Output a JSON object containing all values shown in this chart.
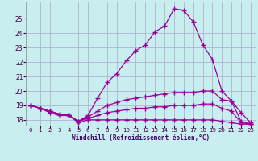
{
  "xlabel": "Windchill (Refroidissement éolien,°C)",
  "background_color": "#c8eef0",
  "grid_color": "#aaaacc",
  "line_color": "#990099",
  "marker": "+",
  "markersize": 4,
  "linewidth": 0.9,
  "xlim": [
    -0.5,
    23.5
  ],
  "ylim": [
    17.6,
    26.2
  ],
  "yticks": [
    18,
    19,
    20,
    21,
    22,
    23,
    24,
    25
  ],
  "xticks": [
    0,
    1,
    2,
    3,
    4,
    5,
    6,
    7,
    8,
    9,
    10,
    11,
    12,
    13,
    14,
    15,
    16,
    17,
    18,
    19,
    20,
    21,
    22,
    23
  ],
  "series": [
    {
      "x": [
        0,
        1,
        2,
        3,
        4,
        5,
        6,
        7,
        8,
        9,
        10,
        11,
        12,
        13,
        14,
        15,
        16,
        17,
        18,
        19,
        20,
        21,
        22,
        23
      ],
      "y": [
        19.0,
        18.8,
        18.6,
        18.4,
        18.3,
        17.9,
        18.3,
        19.5,
        20.6,
        21.2,
        22.1,
        22.8,
        23.2,
        24.1,
        24.5,
        25.7,
        25.6,
        24.8,
        23.2,
        22.2,
        20.0,
        19.3,
        17.9,
        17.7
      ]
    },
    {
      "x": [
        0,
        1,
        2,
        3,
        4,
        5,
        6,
        7,
        8,
        9,
        10,
        11,
        12,
        13,
        14,
        15,
        16,
        17,
        18,
        19,
        20,
        21,
        22,
        23
      ],
      "y": [
        19.0,
        18.8,
        18.6,
        18.4,
        18.3,
        17.9,
        18.2,
        18.6,
        19.0,
        19.2,
        19.4,
        19.5,
        19.6,
        19.7,
        19.8,
        19.9,
        19.9,
        19.9,
        20.0,
        20.0,
        19.4,
        19.3,
        18.5,
        17.8
      ]
    },
    {
      "x": [
        0,
        1,
        2,
        3,
        4,
        5,
        6,
        7,
        8,
        9,
        10,
        11,
        12,
        13,
        14,
        15,
        16,
        17,
        18,
        19,
        20,
        21,
        22,
        23
      ],
      "y": [
        19.0,
        18.8,
        18.6,
        18.4,
        18.3,
        17.9,
        18.1,
        18.3,
        18.5,
        18.6,
        18.7,
        18.8,
        18.8,
        18.9,
        18.9,
        19.0,
        19.0,
        19.0,
        19.1,
        19.1,
        18.8,
        18.6,
        17.8,
        17.7
      ]
    },
    {
      "x": [
        0,
        1,
        2,
        3,
        4,
        5,
        6,
        7,
        8,
        9,
        10,
        11,
        12,
        13,
        14,
        15,
        16,
        17,
        18,
        19,
        20,
        21,
        22,
        23
      ],
      "y": [
        19.0,
        18.8,
        18.5,
        18.3,
        18.3,
        17.8,
        18.0,
        18.0,
        18.0,
        18.0,
        18.0,
        18.0,
        18.0,
        18.0,
        18.0,
        18.0,
        18.0,
        18.0,
        18.0,
        18.0,
        17.9,
        17.8,
        17.7,
        17.7
      ]
    }
  ]
}
